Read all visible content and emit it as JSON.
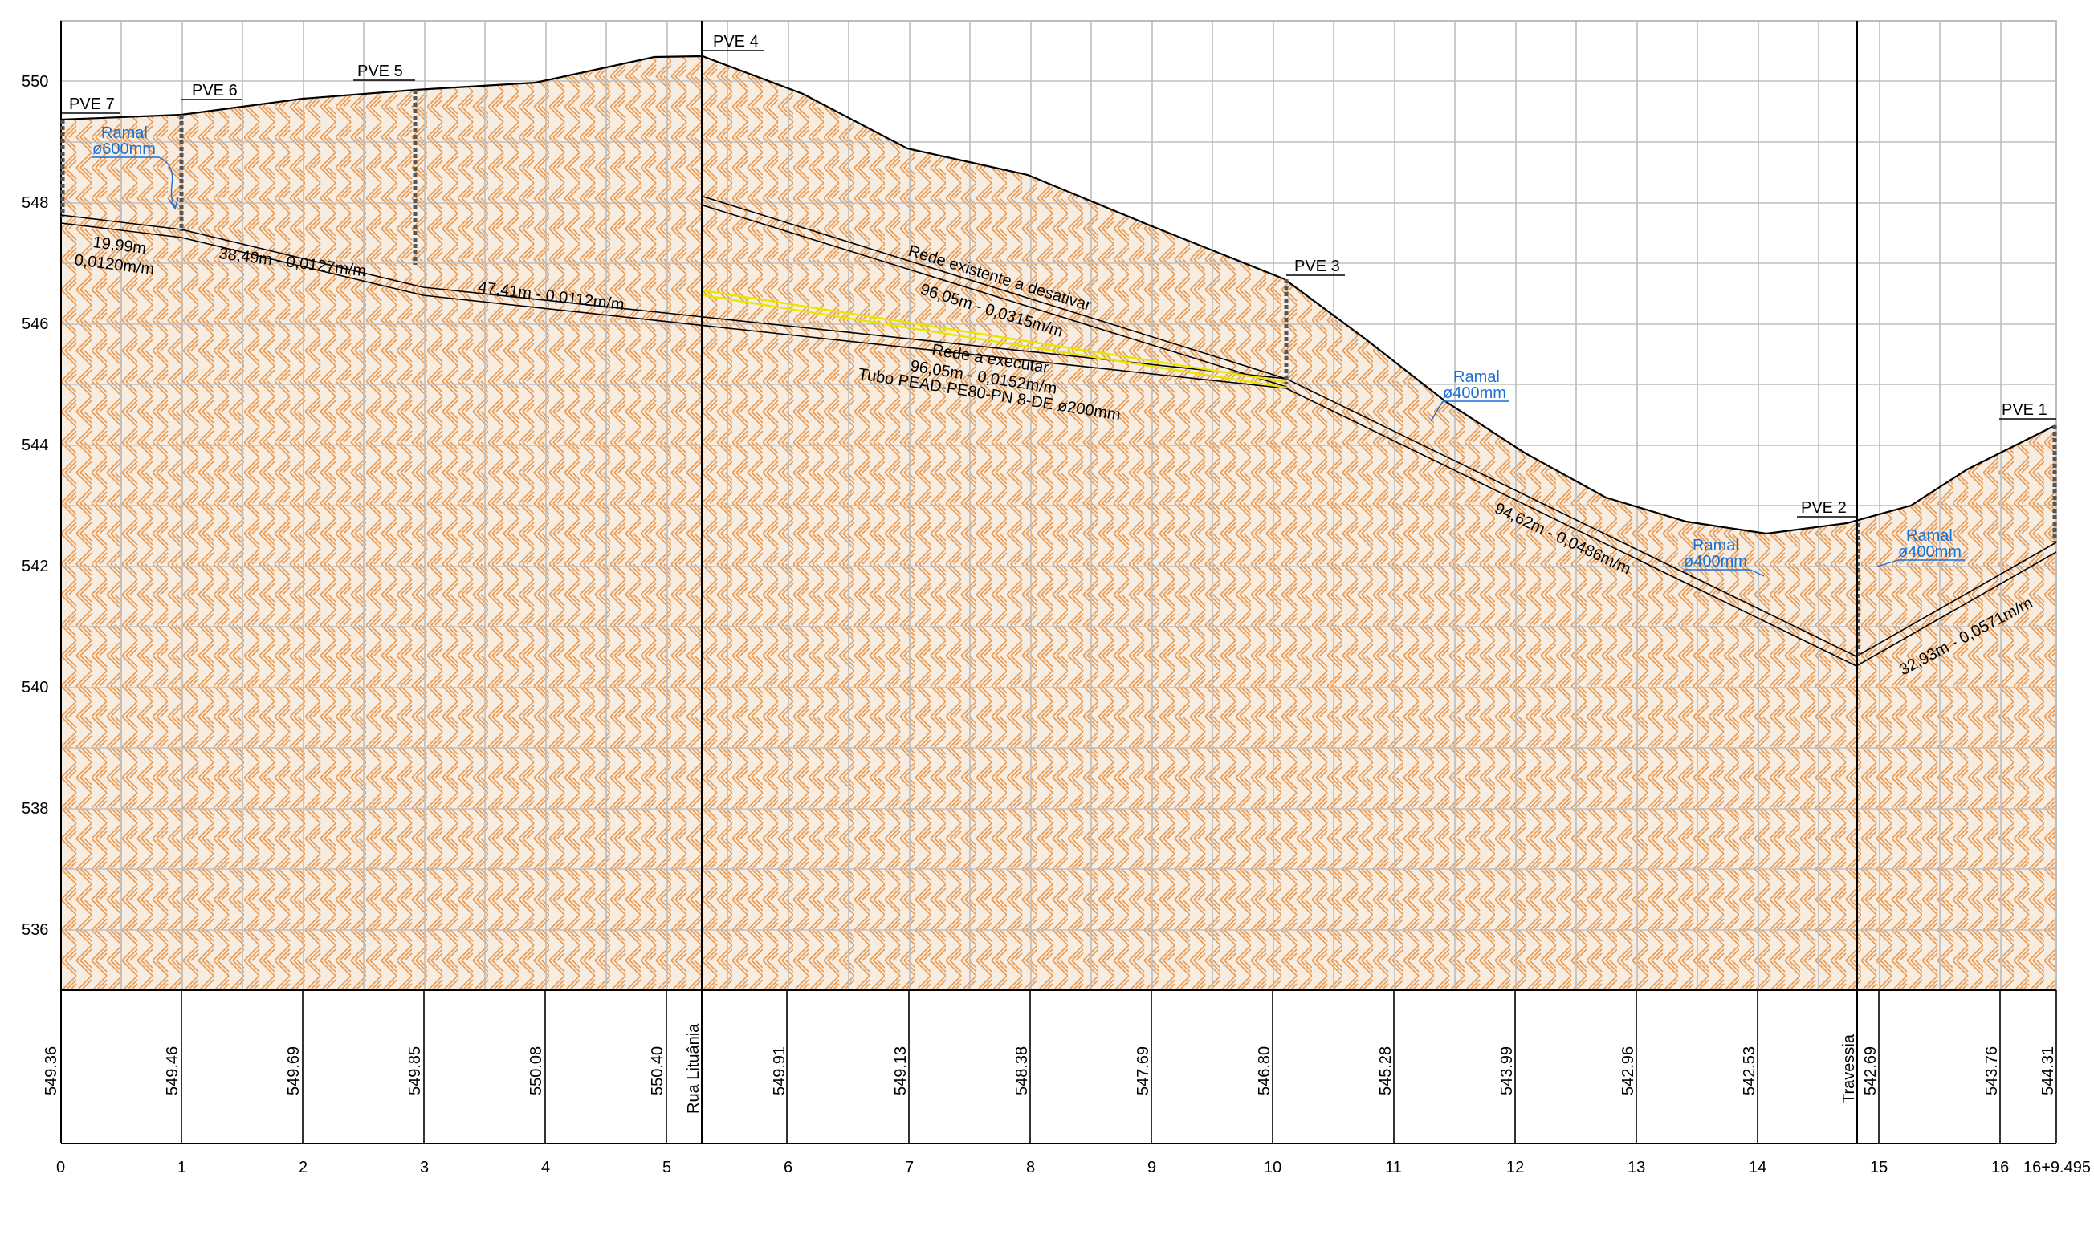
{
  "y_ticks": [
    "550",
    "548",
    "546",
    "544",
    "542",
    "540",
    "538",
    "536"
  ],
  "x_ticks": [
    "0",
    "1",
    "2",
    "3",
    "4",
    "5",
    "6",
    "7",
    "8",
    "9",
    "10",
    "11",
    "12",
    "13",
    "14",
    "15",
    "16",
    "16+9.495"
  ],
  "elevations": [
    "549.36",
    "549.46",
    "549.69",
    "549.85",
    "550.08",
    "550.40",
    "549.91",
    "549.13",
    "548.38",
    "547.69",
    "546.80",
    "545.28",
    "543.99",
    "542.96",
    "542.53",
    "542.69",
    "543.76",
    "544.31"
  ],
  "crossings": {
    "rua": "Rua Lituânia",
    "travessia": "Travessia"
  },
  "manholes": {
    "pve7": "PVE 7",
    "pve6": "PVE 6",
    "pve5": "PVE 5",
    "pve4": "PVE 4",
    "pve3": "PVE 3",
    "pve2": "PVE 2",
    "pve1": "PVE 1"
  },
  "segments": {
    "s1_len": "19,99m",
    "s1_slope": "0,0120m/m",
    "s2": "38,49m - 0,0127m/m",
    "s3": "47,41m - 0,0112m/m",
    "existing_title": "Rede existente a desativar",
    "existing_detail": "96,05m - 0,0315m/m",
    "new_title": "Rede a executar",
    "new_detail": "96,05m - 0,0152m/m",
    "new_pipe": "Tubo PEAD-PE80-PN 8-DE ø200mm",
    "s5": "94,62m - 0,0486m/m",
    "s6": "32,93m - 0,0571m/m"
  },
  "branches": {
    "b1_title": "Ramal",
    "b1_dn": "ø600mm",
    "b2_title": "Ramal",
    "b2_dn": "ø400mm",
    "b3_title": "Ramal",
    "b3_dn": "ø400mm",
    "b4_title": "Ramal",
    "b4_dn": "ø400mm"
  },
  "colors": {
    "soil_hatch": "#e89a52",
    "grid": "#bdbdbd",
    "new_pipe": "#e6e600",
    "branch_text": "#1a6fd6"
  }
}
